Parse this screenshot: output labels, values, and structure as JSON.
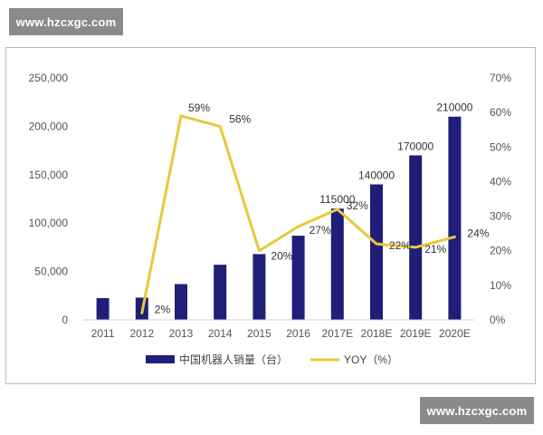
{
  "watermarks": {
    "top": "www.hzcxgc.com",
    "bottom": "www.hzcxgc.com"
  },
  "colors": {
    "bar": "#1f1f7a",
    "line": "#e8c93c",
    "text": "#555555"
  },
  "chart_data": {
    "type": "bar",
    "title": "",
    "xlabel": "",
    "ylabel": "",
    "categories": [
      "2011",
      "2012",
      "2013",
      "2014",
      "2015",
      "2016",
      "2017E",
      "2018E",
      "2019E",
      "2020E"
    ],
    "ylim": [
      0,
      250000
    ],
    "yticks": [
      "250,000",
      "200,000",
      "150,000",
      "100,000",
      "50,000",
      "0"
    ],
    "y2lim": [
      0,
      70
    ],
    "y2ticks": [
      "70%",
      "60%",
      "50%",
      "40%",
      "30%",
      "20%",
      "10%",
      "0%"
    ],
    "grid": false,
    "legend_position": "bottom",
    "series": [
      {
        "name": "中国机器人销量（台）",
        "type": "bar",
        "axis": "left",
        "values": [
          22500,
          23000,
          37000,
          57000,
          68000,
          87000,
          115000,
          140000,
          170000,
          210000
        ],
        "labels": [
          "",
          "",
          "",
          "",
          "",
          "",
          "115000",
          "140000",
          "170000",
          "210000"
        ]
      },
      {
        "name": "YOY（%）",
        "type": "line",
        "axis": "right",
        "values": [
          null,
          2,
          59,
          56,
          20,
          27,
          32,
          22,
          21,
          24
        ],
        "labels": [
          "",
          "2%",
          "59%",
          "56%",
          "20%",
          "27%",
          "32%",
          "22%",
          "21%",
          "24%"
        ]
      }
    ]
  }
}
